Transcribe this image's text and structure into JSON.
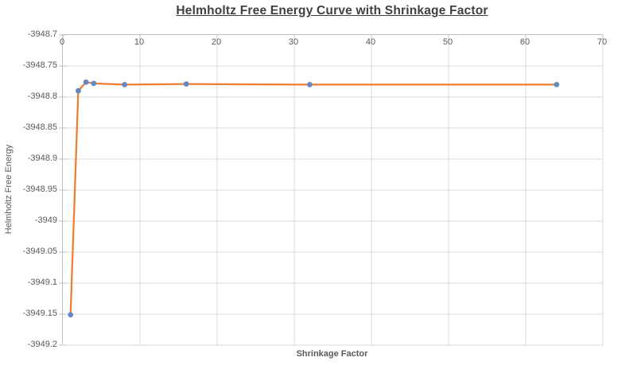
{
  "chart_data": {
    "type": "line",
    "title": "Helmholtz Free Energy Curve with Shrinkage Factor",
    "xlabel": "Shrinkage Factor",
    "ylabel": "Helmholtz Free Energy",
    "x": [
      1,
      2,
      3,
      4,
      8,
      16,
      32,
      64
    ],
    "y": [
      -3949.151,
      -3948.79,
      -3948.776,
      -3948.778,
      -3948.78,
      -3948.779,
      -3948.78,
      -3948.78
    ],
    "xlim": [
      0,
      70
    ],
    "ylim": [
      -3949.2,
      -3948.7
    ],
    "x_ticks": [
      0,
      10,
      20,
      30,
      40,
      50,
      60,
      70
    ],
    "x_tick_labels": [
      "0",
      "10",
      "20",
      "30",
      "40",
      "50",
      "60",
      "70"
    ],
    "y_ticks": [
      -3948.7,
      -3948.75,
      -3948.8,
      -3948.85,
      -3948.9,
      -3948.95,
      -3949,
      -3949.05,
      -3949.1,
      -3949.15,
      -3949.2
    ],
    "y_tick_labels": [
      "-3948.7",
      "-3948.75",
      "-3948.8",
      "-3948.85",
      "-3948.9",
      "-3948.95",
      "-3949",
      "-3949.05",
      "-3949.1",
      "-3949.15",
      "-3949.2"
    ],
    "grid": true,
    "legend": false,
    "colors": {
      "line": "#ED7D31",
      "marker": "#6288C2",
      "gridline": "#D9D9D9",
      "axis_line": "#BFBFBF",
      "tick_text": "#595959",
      "axis_title_text": "#595959",
      "title_text": "#3F3F3F",
      "background": "#FFFFFF"
    }
  }
}
